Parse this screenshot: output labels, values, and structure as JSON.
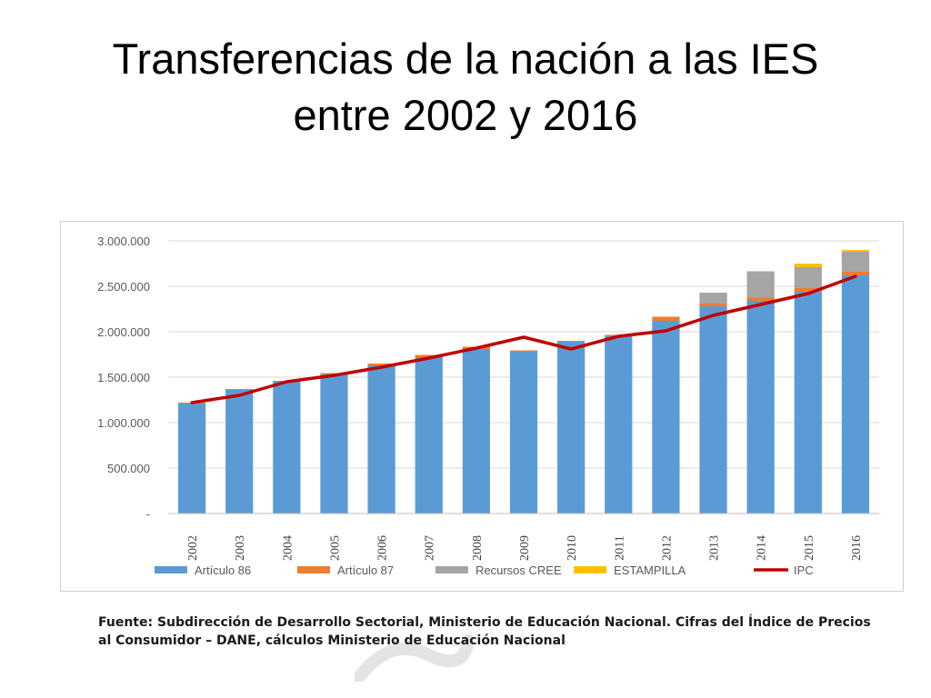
{
  "slide": {
    "title_line1": "Transferencias de la nación a las IES",
    "title_line2": "entre 2002 y 2016",
    "source_line1": "Fuente: Subdirección de Desarrollo Sectorial, Ministerio de Educación Nacional. Cifras del Índice de Precios",
    "source_line2": "al Consumidor – DANE, cálculos Ministerio de Educación Nacional"
  },
  "colors": {
    "articulo86": "#5b9bd5",
    "articulo87": "#ed7d31",
    "cree": "#a5a5a5",
    "estampilla": "#ffc000",
    "ipc": "#c00000",
    "grid": "#d9d9d9",
    "axis_text": "#595959"
  },
  "chart_data": {
    "type": "bar",
    "stacked": true,
    "title": "",
    "xlabel": "",
    "ylabel": "",
    "ylim": [
      0,
      3000000
    ],
    "yticks": [
      0,
      500000,
      1000000,
      1500000,
      2000000,
      2500000,
      3000000
    ],
    "ytick_labels": [
      "-",
      "500.000",
      "1.000.000",
      "1.500.000",
      "2.000.000",
      "2.500.000",
      "3.000.000"
    ],
    "grid": true,
    "legend_position": "bottom",
    "categories": [
      "2002",
      "2003",
      "2004",
      "2005",
      "2006",
      "2007",
      "2008",
      "2009",
      "2010",
      "2011",
      "2012",
      "2013",
      "2014",
      "2015",
      "2016"
    ],
    "series": [
      {
        "name": "Artículo 86",
        "key": "articulo86",
        "kind": "bar",
        "values": [
          1210000,
          1360000,
          1450000,
          1530000,
          1630000,
          1720000,
          1810000,
          1780000,
          1890000,
          1950000,
          2120000,
          2280000,
          2340000,
          2440000,
          2620000
        ]
      },
      {
        "name": "Artículo 87",
        "key": "articulo87",
        "kind": "bar",
        "values": [
          10000,
          10000,
          10000,
          15000,
          20000,
          25000,
          25000,
          15000,
          10000,
          15000,
          45000,
          30000,
          35000,
          40000,
          40000
        ]
      },
      {
        "name": "Recursos CREE",
        "key": "cree",
        "kind": "bar",
        "values": [
          0,
          0,
          0,
          0,
          0,
          0,
          0,
          0,
          0,
          0,
          0,
          120000,
          290000,
          230000,
          220000
        ]
      },
      {
        "name": "ESTAMPILLA",
        "key": "estampilla",
        "kind": "bar",
        "values": [
          0,
          0,
          0,
          0,
          0,
          0,
          0,
          0,
          0,
          0,
          0,
          0,
          0,
          40000,
          20000
        ]
      },
      {
        "name": "IPC",
        "key": "ipc",
        "kind": "line",
        "values": [
          1220000,
          1300000,
          1450000,
          1520000,
          1610000,
          1710000,
          1820000,
          1940000,
          1810000,
          1950000,
          2010000,
          2180000,
          2300000,
          2420000,
          2610000
        ]
      }
    ]
  }
}
